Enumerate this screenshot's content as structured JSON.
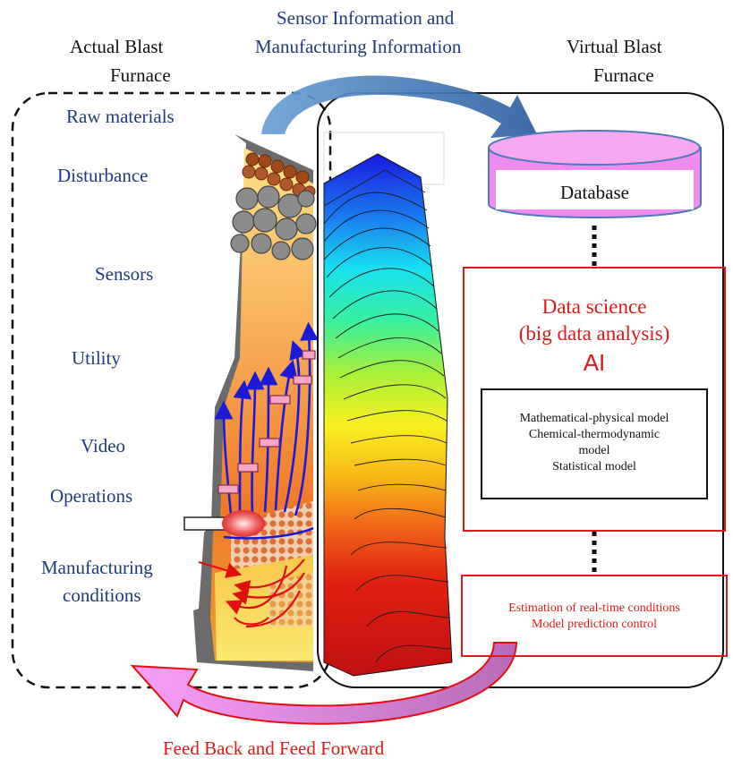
{
  "top_arrow": {
    "line1": "Sensor Information and",
    "line2": "Manufacturing Information"
  },
  "actual": {
    "title1": "Actual Blast",
    "title2": "Furnace"
  },
  "virtual": {
    "title1": "Virtual Blast",
    "title2": "Furnace"
  },
  "left_items": [
    "Raw materials",
    "Disturbance",
    "Sensors",
    "Utility",
    "Video",
    "Operations",
    "Manufacturing",
    "conditions"
  ],
  "database": "Database",
  "data_science": {
    "line1": "Data science",
    "line2": "(big data analysis)",
    "line3": "AI"
  },
  "models": [
    "Mathematical-physical model",
    "Chemical-thermodynamic",
    "model",
    "Statistical model"
  ],
  "estimation": {
    "line1": "Estimation of real-time conditions",
    "line2": "Model prediction control"
  },
  "bottom_arrow": "Feed Back and Feed Forward",
  "colors": {
    "navy": "#1f3a7a",
    "red": "#e01818",
    "pink": "#f08cf0",
    "blue_arrow": "#4a7ab8"
  }
}
